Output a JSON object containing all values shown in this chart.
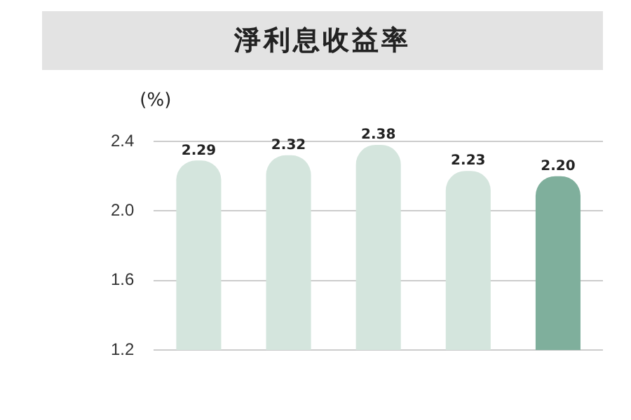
{
  "chart_data": {
    "type": "bar",
    "title": "淨利息收益率",
    "ylabel": "(%)",
    "categories": [
      null,
      null,
      null,
      null,
      null
    ],
    "values": [
      2.29,
      2.32,
      2.38,
      2.23,
      2.2
    ],
    "colors": [
      "#d4e5dd",
      "#d4e5dd",
      "#d4e5dd",
      "#d4e5dd",
      "#7faf9c"
    ],
    "value_labels": [
      "2.29",
      "2.32",
      "2.38",
      "2.23",
      "2.20"
    ],
    "ylim": [
      1.2,
      2.4
    ],
    "yticks": [
      1.2,
      1.6,
      {
        "value": 2.0,
        "label": "2.0"
      },
      2.4
    ],
    "grid": "y",
    "tick_labels": "y"
  }
}
